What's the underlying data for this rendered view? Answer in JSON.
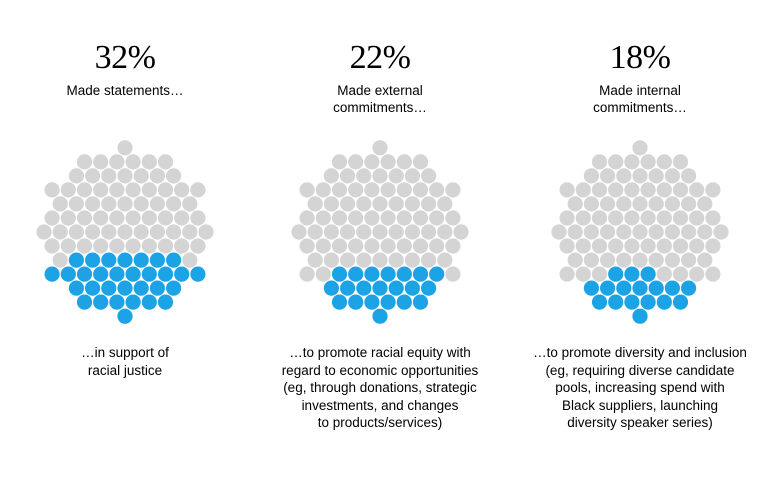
{
  "colors": {
    "filled": "#1ca3e5",
    "empty": "#d4d4d4"
  },
  "chart_data": [
    {
      "type": "proportional-area",
      "value_percent": 32,
      "value_label": "32%",
      "lead_text": "Made statements…",
      "caption": "…in support of\nracial justice"
    },
    {
      "type": "proportional-area",
      "value_percent": 22,
      "value_label": "22%",
      "lead_text": "Made external\ncommitments…",
      "caption": "…to promote racial equity with\nregard to economic opportunities\n(eg, through donations, strategic\ninvestments, and changes\nto products/services)"
    },
    {
      "type": "proportional-area",
      "value_percent": 18,
      "value_label": "18%",
      "lead_text": "Made internal\ncommitments…",
      "caption": "…to promote diversity and inclusion\n(eg, requiring diverse candidate\npools, increasing spend with\nBlack suppliers, launching\ndiversity speaker series)"
    }
  ]
}
